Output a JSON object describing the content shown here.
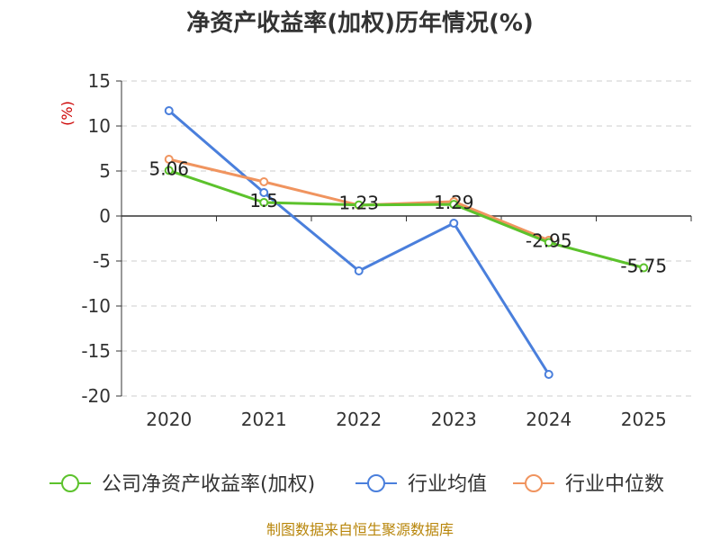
{
  "chart_data": {
    "type": "line",
    "title": "净资产收益率(加权)历年情况(%)",
    "ylabel": "(%)",
    "xlabel": "",
    "categories": [
      "2020",
      "2021",
      "2022",
      "2023",
      "2024",
      "2025"
    ],
    "ylim": [
      -20,
      15
    ],
    "yticks": [
      15,
      10,
      5,
      0,
      -5,
      -10,
      -15,
      -20
    ],
    "grid": true,
    "legend_position": "bottom",
    "series": [
      {
        "name": "公司净资产收益率(加权)",
        "color": "#5cc22c",
        "values": [
          5.06,
          1.5,
          1.23,
          1.29,
          -2.95,
          -5.75
        ],
        "labels": [
          "5.06",
          "1.5",
          "1.23",
          "1.29",
          "-2.95",
          "-5.75"
        ]
      },
      {
        "name": "行业均值",
        "color": "#4a7fdc",
        "values": [
          11.7,
          2.6,
          -6.1,
          -0.8,
          -17.6,
          null
        ]
      },
      {
        "name": "行业中位数",
        "color": "#f0945f",
        "values": [
          6.3,
          3.8,
          1.2,
          1.6,
          -2.7,
          null
        ]
      }
    ],
    "source": "制图数据来自恒生聚源数据库"
  }
}
